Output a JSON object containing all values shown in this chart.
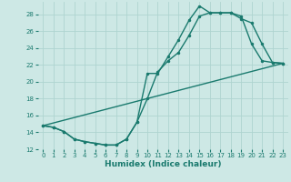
{
  "xlabel": "Humidex (Indice chaleur)",
  "background_color": "#cde8e5",
  "grid_color": "#afd4d0",
  "line_color": "#1a7a6e",
  "xlim": [
    -0.5,
    23.5
  ],
  "ylim": [
    12,
    29.5
  ],
  "yticks": [
    12,
    14,
    16,
    18,
    20,
    22,
    24,
    26,
    28
  ],
  "xticks": [
    0,
    1,
    2,
    3,
    4,
    5,
    6,
    7,
    8,
    9,
    10,
    11,
    12,
    13,
    14,
    15,
    16,
    17,
    18,
    19,
    20,
    21,
    22,
    23
  ],
  "line1_x": [
    0,
    1,
    2,
    3,
    4,
    5,
    6,
    7,
    8,
    9,
    10,
    11,
    12,
    13,
    14,
    15,
    16,
    17,
    18,
    19,
    20,
    21,
    22,
    23
  ],
  "line1_y": [
    14.8,
    14.6,
    14.1,
    13.2,
    12.9,
    12.7,
    12.5,
    12.5,
    13.2,
    15.2,
    21.0,
    21.0,
    23.0,
    25.0,
    27.3,
    29.0,
    28.2,
    28.2,
    28.2,
    27.8,
    24.5,
    22.5,
    22.3,
    22.2
  ],
  "line2_x": [
    0,
    1,
    2,
    3,
    4,
    5,
    6,
    7,
    8,
    9,
    10,
    11,
    12,
    13,
    14,
    15,
    16,
    17,
    18,
    19,
    20,
    21,
    22,
    23
  ],
  "line2_y": [
    14.8,
    14.6,
    14.1,
    13.2,
    12.9,
    12.7,
    12.5,
    12.5,
    13.2,
    15.2,
    18.0,
    21.2,
    22.5,
    23.5,
    25.5,
    27.8,
    28.2,
    28.2,
    28.2,
    27.5,
    27.0,
    24.5,
    22.3,
    22.2
  ],
  "line3_x": [
    0,
    23
  ],
  "line3_y": [
    14.8,
    22.2
  ],
  "marker_size": 2.5,
  "line_width": 1.0
}
